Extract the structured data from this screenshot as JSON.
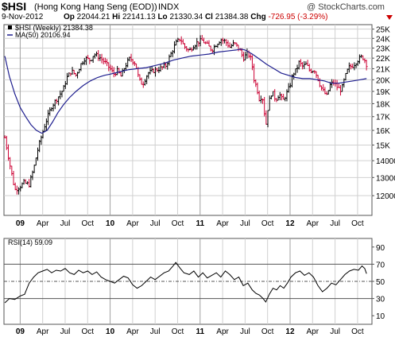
{
  "header": {
    "symbol": "$HSI",
    "name": "(Hong Kong Hang Seng (EOD))",
    "exchange": "INDX",
    "logo": "@ StockCharts.com",
    "date": "9-Nov-2012",
    "stats": {
      "op_label": "Op",
      "op": "22044.21",
      "hi_label": "Hi",
      "hi": "22141.13",
      "lo_label": "Lo",
      "lo": "21330.34",
      "cl_label": "Cl",
      "cl": "21384.38",
      "chg_label": "Chg",
      "chg": "-726.95 (-3.29%)",
      "direction_icon": "down-arrow-icon"
    }
  },
  "chart_data": [
    {
      "type": "ohlc-weekly-bar",
      "legend": [
        {
          "label": "$HSI (Weekly) 21384.38",
          "color": "#000000",
          "marker": "square"
        },
        {
          "label": "MA(50) 20106.94",
          "color": "#1f1f8f",
          "marker": "line"
        }
      ],
      "y_scale": "log",
      "ylim": [
        11000,
        25500
      ],
      "y_ticks": [
        "25K",
        "24K",
        "23K",
        "22K",
        "21K",
        "20K",
        "19K",
        "18K",
        "17K",
        "16K",
        "15K",
        "14000",
        "13000",
        "12000"
      ],
      "y_tick_values": [
        25000,
        24000,
        23000,
        22000,
        21000,
        20000,
        19000,
        18000,
        17000,
        16000,
        15000,
        14000,
        13000,
        12000
      ],
      "x_ticks": [
        {
          "label": "09",
          "year": true,
          "t": 0.0
        },
        {
          "label": "Apr",
          "year": false,
          "t": 0.25
        },
        {
          "label": "Jul",
          "year": false,
          "t": 0.5
        },
        {
          "label": "Oct",
          "year": false,
          "t": 0.75
        },
        {
          "label": "10",
          "year": true,
          "t": 1.0
        },
        {
          "label": "Apr",
          "year": false,
          "t": 1.25
        },
        {
          "label": "Jul",
          "year": false,
          "t": 1.5
        },
        {
          "label": "Oct",
          "year": false,
          "t": 1.75
        },
        {
          "label": "11",
          "year": true,
          "t": 2.0
        },
        {
          "label": "Apr",
          "year": false,
          "t": 2.25
        },
        {
          "label": "Jul",
          "year": false,
          "t": 2.5
        },
        {
          "label": "Oct",
          "year": false,
          "t": 2.75
        },
        {
          "label": "12",
          "year": true,
          "t": 3.0
        },
        {
          "label": "Apr",
          "year": false,
          "t": 3.25
        },
        {
          "label": "Jul",
          "year": false,
          "t": 3.5
        },
        {
          "label": "Oct",
          "year": false,
          "t": 3.75
        }
      ],
      "time_domain": [
        -0.18,
        3.91
      ],
      "up_color": "#000000",
      "down_color": "#cc0033",
      "price_path": [
        [
          -0.17,
          15500
        ],
        [
          -0.12,
          13900
        ],
        [
          -0.06,
          12300
        ],
        [
          0.0,
          12500
        ],
        [
          0.04,
          12700
        ],
        [
          0.1,
          12600
        ],
        [
          0.15,
          13500
        ],
        [
          0.2,
          14800
        ],
        [
          0.28,
          16500
        ],
        [
          0.35,
          17800
        ],
        [
          0.42,
          18500
        ],
        [
          0.48,
          19200
        ],
        [
          0.52,
          20200
        ],
        [
          0.57,
          20800
        ],
        [
          0.62,
          20400
        ],
        [
          0.68,
          21500
        ],
        [
          0.72,
          22000
        ],
        [
          0.78,
          21800
        ],
        [
          0.82,
          22400
        ],
        [
          0.88,
          22100
        ],
        [
          0.94,
          21600
        ],
        [
          1.0,
          21000
        ],
        [
          1.04,
          20500
        ],
        [
          1.08,
          20800
        ],
        [
          1.12,
          20300
        ],
        [
          1.17,
          21300
        ],
        [
          1.22,
          22000
        ],
        [
          1.28,
          21500
        ],
        [
          1.32,
          20000
        ],
        [
          1.36,
          19600
        ],
        [
          1.42,
          20600
        ],
        [
          1.48,
          20800
        ],
        [
          1.55,
          21000
        ],
        [
          1.62,
          21300
        ],
        [
          1.68,
          22500
        ],
        [
          1.73,
          23500
        ],
        [
          1.78,
          24000
        ],
        [
          1.82,
          23200
        ],
        [
          1.88,
          22700
        ],
        [
          1.92,
          23200
        ],
        [
          1.97,
          23600
        ],
        [
          2.02,
          23800
        ],
        [
          2.08,
          23300
        ],
        [
          2.13,
          22800
        ],
        [
          2.18,
          23400
        ],
        [
          2.23,
          23900
        ],
        [
          2.28,
          23700
        ],
        [
          2.33,
          23100
        ],
        [
          2.38,
          23500
        ],
        [
          2.44,
          22800
        ],
        [
          2.48,
          22000
        ],
        [
          2.53,
          22500
        ],
        [
          2.57,
          21800
        ],
        [
          2.6,
          20000
        ],
        [
          2.63,
          19300
        ],
        [
          2.66,
          18300
        ],
        [
          2.69,
          18700
        ],
        [
          2.72,
          17000
        ],
        [
          2.73,
          16250
        ],
        [
          2.76,
          18000
        ],
        [
          2.8,
          19000
        ],
        [
          2.84,
          18300
        ],
        [
          2.88,
          18800
        ],
        [
          2.92,
          18200
        ],
        [
          2.96,
          18800
        ],
        [
          3.0,
          19500
        ],
        [
          3.03,
          20500
        ],
        [
          3.07,
          20900
        ],
        [
          3.1,
          21600
        ],
        [
          3.14,
          21200
        ],
        [
          3.18,
          21400
        ],
        [
          3.22,
          20800
        ],
        [
          3.27,
          20900
        ],
        [
          3.3,
          20300
        ],
        [
          3.34,
          19400
        ],
        [
          3.37,
          19000
        ],
        [
          3.41,
          18600
        ],
        [
          3.44,
          19500
        ],
        [
          3.48,
          19800
        ],
        [
          3.53,
          19300
        ],
        [
          3.57,
          19100
        ],
        [
          3.61,
          20200
        ],
        [
          3.65,
          21100
        ],
        [
          3.7,
          21300
        ],
        [
          3.75,
          21800
        ],
        [
          3.79,
          22100
        ],
        [
          3.82,
          22000
        ],
        [
          3.85,
          21400
        ]
      ],
      "ma_path": [
        [
          -0.17,
          22200
        ],
        [
          -0.12,
          20300
        ],
        [
          -0.06,
          18800
        ],
        [
          0.0,
          17700
        ],
        [
          0.06,
          17000
        ],
        [
          0.12,
          16400
        ],
        [
          0.18,
          16000
        ],
        [
          0.24,
          15800
        ],
        [
          0.3,
          16000
        ],
        [
          0.36,
          16600
        ],
        [
          0.42,
          17300
        ],
        [
          0.48,
          17900
        ],
        [
          0.55,
          18500
        ],
        [
          0.62,
          19000
        ],
        [
          0.7,
          19500
        ],
        [
          0.78,
          19900
        ],
        [
          0.86,
          20200
        ],
        [
          0.94,
          20400
        ],
        [
          1.0,
          20500
        ],
        [
          1.1,
          20700
        ],
        [
          1.2,
          20900
        ],
        [
          1.3,
          21000
        ],
        [
          1.4,
          21100
        ],
        [
          1.5,
          21300
        ],
        [
          1.6,
          21500
        ],
        [
          1.7,
          21800
        ],
        [
          1.8,
          22000
        ],
        [
          1.9,
          22200
        ],
        [
          2.0,
          22300
        ],
        [
          2.1,
          22400
        ],
        [
          2.2,
          22600
        ],
        [
          2.3,
          22700
        ],
        [
          2.4,
          22800
        ],
        [
          2.45,
          22900
        ],
        [
          2.5,
          22800
        ],
        [
          2.58,
          22400
        ],
        [
          2.66,
          21900
        ],
        [
          2.74,
          21400
        ],
        [
          2.82,
          21000
        ],
        [
          2.9,
          20600
        ],
        [
          2.98,
          20400
        ],
        [
          3.06,
          20200
        ],
        [
          3.14,
          20100
        ],
        [
          3.22,
          20100
        ],
        [
          3.3,
          20000
        ],
        [
          3.38,
          19900
        ],
        [
          3.46,
          19700
        ],
        [
          3.54,
          19700
        ],
        [
          3.62,
          19800
        ],
        [
          3.7,
          19900
        ],
        [
          3.78,
          20000
        ],
        [
          3.85,
          20100
        ]
      ]
    },
    {
      "type": "line",
      "legend": [
        {
          "label": "RSI(14) 59.09",
          "color": "#000000"
        }
      ],
      "ylim": [
        0,
        100
      ],
      "y_ticks": [
        "90",
        "70",
        "50",
        "30",
        "10"
      ],
      "y_tick_values": [
        90,
        70,
        50,
        30,
        10
      ],
      "reference_lines": [
        70,
        50,
        30
      ],
      "x_ticks": [
        "09",
        "Apr",
        "Jul",
        "Oct",
        "10",
        "Apr",
        "Jul",
        "Oct",
        "11",
        "Apr",
        "Jul",
        "Oct",
        "12",
        "Apr",
        "Jul",
        "Oct"
      ],
      "rsi_path": [
        [
          -0.17,
          25
        ],
        [
          -0.12,
          30
        ],
        [
          -0.06,
          29
        ],
        [
          0.0,
          33
        ],
        [
          0.05,
          35
        ],
        [
          0.1,
          48
        ],
        [
          0.15,
          55
        ],
        [
          0.2,
          60
        ],
        [
          0.25,
          62
        ],
        [
          0.3,
          64
        ],
        [
          0.35,
          60
        ],
        [
          0.4,
          63
        ],
        [
          0.45,
          62
        ],
        [
          0.5,
          65
        ],
        [
          0.55,
          60
        ],
        [
          0.6,
          58
        ],
        [
          0.65,
          63
        ],
        [
          0.7,
          60
        ],
        [
          0.75,
          62
        ],
        [
          0.8,
          58
        ],
        [
          0.85,
          61
        ],
        [
          0.9,
          55
        ],
        [
          0.95,
          52
        ],
        [
          1.0,
          50
        ],
        [
          1.05,
          48
        ],
        [
          1.1,
          52
        ],
        [
          1.15,
          56
        ],
        [
          1.2,
          54
        ],
        [
          1.25,
          46
        ],
        [
          1.3,
          42
        ],
        [
          1.35,
          45
        ],
        [
          1.4,
          50
        ],
        [
          1.45,
          55
        ],
        [
          1.5,
          52
        ],
        [
          1.55,
          56
        ],
        [
          1.6,
          60
        ],
        [
          1.65,
          62
        ],
        [
          1.7,
          68
        ],
        [
          1.73,
          72
        ],
        [
          1.78,
          65
        ],
        [
          1.82,
          60
        ],
        [
          1.88,
          58
        ],
        [
          1.93,
          62
        ],
        [
          1.98,
          55
        ],
        [
          2.03,
          60
        ],
        [
          2.08,
          54
        ],
        [
          2.13,
          57
        ],
        [
          2.18,
          60
        ],
        [
          2.23,
          55
        ],
        [
          2.28,
          62
        ],
        [
          2.33,
          58
        ],
        [
          2.38,
          52
        ],
        [
          2.43,
          55
        ],
        [
          2.48,
          45
        ],
        [
          2.53,
          48
        ],
        [
          2.58,
          40
        ],
        [
          2.62,
          36
        ],
        [
          2.66,
          34
        ],
        [
          2.7,
          30
        ],
        [
          2.73,
          26
        ],
        [
          2.77,
          35
        ],
        [
          2.81,
          42
        ],
        [
          2.85,
          40
        ],
        [
          2.89,
          45
        ],
        [
          2.93,
          42
        ],
        [
          2.97,
          48
        ],
        [
          3.01,
          55
        ],
        [
          3.06,
          60
        ],
        [
          3.11,
          62
        ],
        [
          3.16,
          57
        ],
        [
          3.21,
          60
        ],
        [
          3.26,
          55
        ],
        [
          3.31,
          45
        ],
        [
          3.36,
          38
        ],
        [
          3.41,
          42
        ],
        [
          3.46,
          48
        ],
        [
          3.51,
          46
        ],
        [
          3.56,
          52
        ],
        [
          3.61,
          58
        ],
        [
          3.66,
          62
        ],
        [
          3.71,
          64
        ],
        [
          3.76,
          63
        ],
        [
          3.8,
          68
        ],
        [
          3.83,
          65
        ],
        [
          3.85,
          59
        ]
      ]
    }
  ]
}
